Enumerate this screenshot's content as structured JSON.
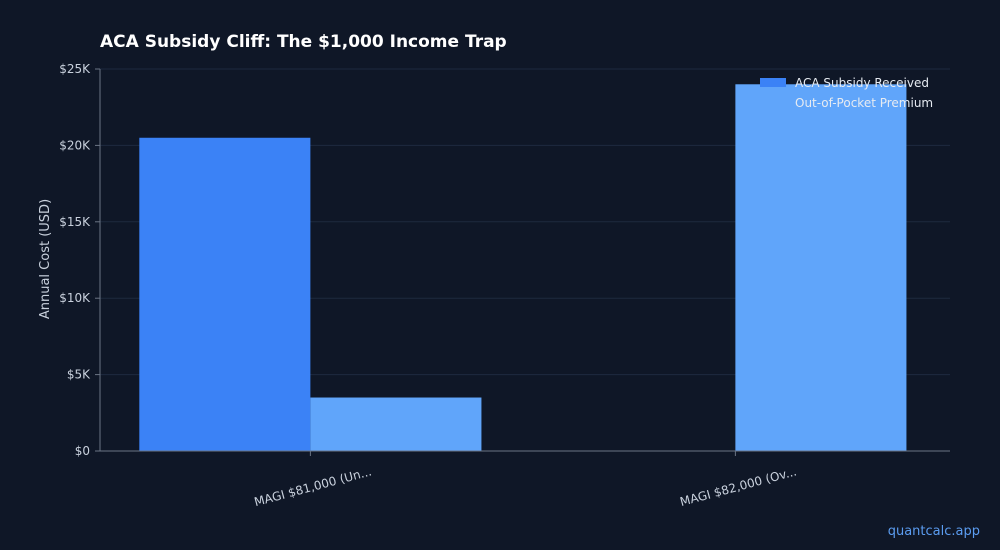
{
  "watermark": "quantcalc.app",
  "colors": {
    "background": "#0f1727",
    "subsidy": "#3b82f6",
    "premium": "#60a5fa",
    "text": "#c9d1dd",
    "grid": "#1e2a3f",
    "axis": "#6b7585"
  },
  "chart_data": {
    "type": "bar",
    "title": "ACA Subsidy Cliff: The $1,000 Income Trap",
    "ylabel": "Annual Cost (USD)",
    "xlabel": "",
    "categories": [
      "MAGI $81,000 (Un...",
      "MAGI $82,000 (Ov..."
    ],
    "series": [
      {
        "name": "ACA Subsidy Received",
        "values": [
          20500,
          0
        ]
      },
      {
        "name": "Out-of-Pocket Premium",
        "values": [
          3500,
          24000
        ]
      }
    ],
    "ylim": [
      0,
      25000
    ],
    "yticks": [
      0,
      5000,
      10000,
      15000,
      20000,
      25000
    ],
    "ytick_labels": [
      "$0",
      "$5K",
      "$10K",
      "$15K",
      "$20K",
      "$25K"
    ],
    "grid": true,
    "legend_position": "top-right"
  }
}
